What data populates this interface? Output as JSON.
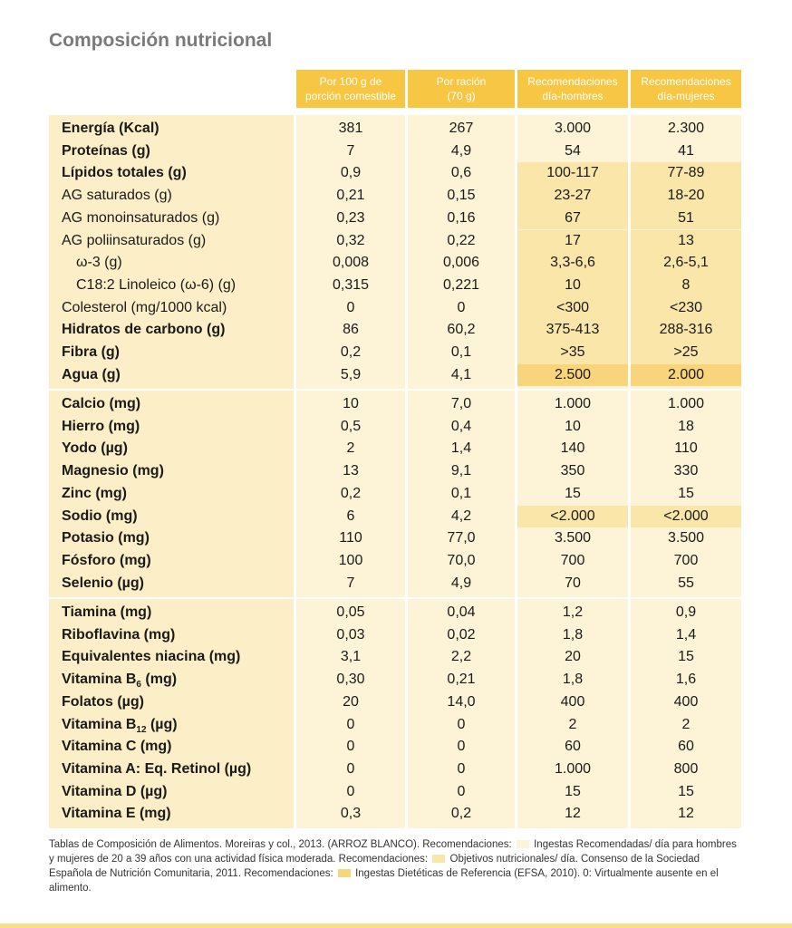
{
  "title": "Composición nutricional",
  "columns": [
    "Por 100 g de porción comestible",
    "Por ración (70 g)",
    "Recomendaciones día-hombres",
    "Recomendaciones día-mujeres"
  ],
  "columns_split": [
    [
      "Por 100 g de",
      "porción comestible"
    ],
    [
      "Por ración",
      "(70 g)"
    ],
    [
      "Recomendaciones",
      "día-hombres"
    ],
    [
      "Recomendaciones",
      "día-mujeres"
    ]
  ],
  "sections": [
    {
      "rows": [
        {
          "label": "Energía (Kcal)",
          "bold": true,
          "v": [
            "381",
            "267",
            "3.000",
            "2.300"
          ]
        },
        {
          "label": "Proteínas (g)",
          "bold": true,
          "v": [
            "7",
            "4,9",
            "54",
            "41"
          ]
        },
        {
          "label": "Lípidos totales (g)",
          "bold": true,
          "v": [
            "0,9",
            "0,6",
            "100-117",
            "77-89"
          ]
        },
        {
          "label": "AG saturados (g)",
          "v": [
            "0,21",
            "0,15",
            "23-27",
            "18-20"
          ]
        },
        {
          "label": "AG monoinsaturados (g)",
          "v": [
            "0,23",
            "0,16",
            "67",
            "51"
          ]
        },
        {
          "label": "AG poliinsaturados (g)",
          "v": [
            "0,32",
            "0,22",
            "17",
            "13"
          ]
        },
        {
          "label": "ω-3 (g)",
          "indent": true,
          "v": [
            "0,008",
            "0,006",
            "3,3-6,6",
            "2,6-5,1"
          ]
        },
        {
          "label": "C18:2 Linoleico (ω-6) (g)",
          "indent": true,
          "v": [
            "0,315",
            "0,221",
            "10",
            "8"
          ]
        },
        {
          "label": "Colesterol (mg/1000 kcal)",
          "v": [
            "0",
            "0",
            "<300",
            "<230"
          ]
        },
        {
          "label": "Hidratos de carbono (g)",
          "bold": true,
          "v": [
            "86",
            "60,2",
            "375-413",
            "288-316"
          ]
        },
        {
          "label": "Fibra (g)",
          "bold": true,
          "v": [
            "0,2",
            "0,1",
            ">35",
            ">25"
          ]
        },
        {
          "label": "Agua (g)",
          "bold": true,
          "v": [
            "5,9",
            "4,1",
            "2.500",
            "2.000"
          ]
        }
      ]
    },
    {
      "rows": [
        {
          "label": "Calcio (mg)",
          "bold": true,
          "v": [
            "10",
            "7,0",
            "1.000",
            "1.000"
          ]
        },
        {
          "label": "Hierro (mg)",
          "bold": true,
          "v": [
            "0,5",
            "0,4",
            "10",
            "18"
          ]
        },
        {
          "label": "Yodo (µg)",
          "bold": true,
          "v": [
            "2",
            "1,4",
            "140",
            "110"
          ]
        },
        {
          "label": "Magnesio (mg)",
          "bold": true,
          "v": [
            "13",
            "9,1",
            "350",
            "330"
          ]
        },
        {
          "label": "Zinc (mg)",
          "bold": true,
          "v": [
            "0,2",
            "0,1",
            "15",
            "15"
          ]
        },
        {
          "label": "Sodio (mg)",
          "bold": true,
          "v": [
            "6",
            "4,2",
            "<2.000",
            "<2.000"
          ]
        },
        {
          "label": "Potasio (mg)",
          "bold": true,
          "v": [
            "110",
            "77,0",
            "3.500",
            "3.500"
          ]
        },
        {
          "label": "Fósforo (mg)",
          "bold": true,
          "v": [
            "100",
            "70,0",
            "700",
            "700"
          ]
        },
        {
          "label": "Selenio (µg)",
          "bold": true,
          "v": [
            "7",
            "4,9",
            "70",
            "55"
          ]
        }
      ]
    },
    {
      "rows": [
        {
          "label": "Tiamina (mg)",
          "bold": true,
          "v": [
            "0,05",
            "0,04",
            "1,2",
            "0,9"
          ]
        },
        {
          "label": "Riboflavina (mg)",
          "bold": true,
          "v": [
            "0,03",
            "0,02",
            "1,8",
            "1,4"
          ]
        },
        {
          "label": "Equivalentes niacina (mg)",
          "bold": true,
          "v": [
            "3,1",
            "2,2",
            "20",
            "15"
          ]
        },
        {
          "label": "Vitamina B6 (mg)",
          "label_main": "Vitamina B",
          "label_sub": "6",
          "label_rest": " (mg)",
          "bold": true,
          "v": [
            "0,30",
            "0,21",
            "1,8",
            "1,6"
          ]
        },
        {
          "label": "Folatos (µg)",
          "bold": true,
          "v": [
            "20",
            "14,0",
            "400",
            "400"
          ]
        },
        {
          "label": "Vitamina B12 (µg)",
          "label_main": "Vitamina B",
          "label_sub": "12",
          "label_rest": " (µg)",
          "bold": true,
          "v": [
            "0",
            "0",
            "2",
            "2"
          ]
        },
        {
          "label": "Vitamina C (mg)",
          "bold": true,
          "v": [
            "0",
            "0",
            "60",
            "60"
          ]
        },
        {
          "label": "Vitamina A: Eq. Retinol (µg)",
          "bold": true,
          "v": [
            "0",
            "0",
            "1.000",
            "800"
          ]
        },
        {
          "label": "Vitamina D (µg)",
          "bold": true,
          "v": [
            "0",
            "0",
            "15",
            "15"
          ]
        },
        {
          "label": "Vitamina E (mg)",
          "bold": true,
          "v": [
            "0,3",
            "0,2",
            "12",
            "12"
          ]
        }
      ]
    }
  ],
  "footnote": {
    "p1": "Tablas de Composición de Alimentos. Moreiras y col., 2013. (ARROZ BLANCO). Recomendaciones:",
    "p2": "Ingestas Recomendadas/ día para hombres y mujeres de 20 a 39 años con una actividad física moderada. Recomendaciones:",
    "p3": "Objetivos nutricionales/ día. Consenso de la Sociedad Española de Nutrición Comunitaria, 2011. Recomendaciones:",
    "p4": "Ingestas Dietéticas de Referencia (EFSA, 2010). 0: Virtualmente ausente en el alimento."
  },
  "colors": {
    "header": "#f7c642",
    "label_bg": "#fcefc8",
    "cell_bg": "#fef6e2",
    "highlight_objectives": "#fbe6a9",
    "highlight_efsa": "#f8d57a",
    "title": "#7a7a7a"
  }
}
